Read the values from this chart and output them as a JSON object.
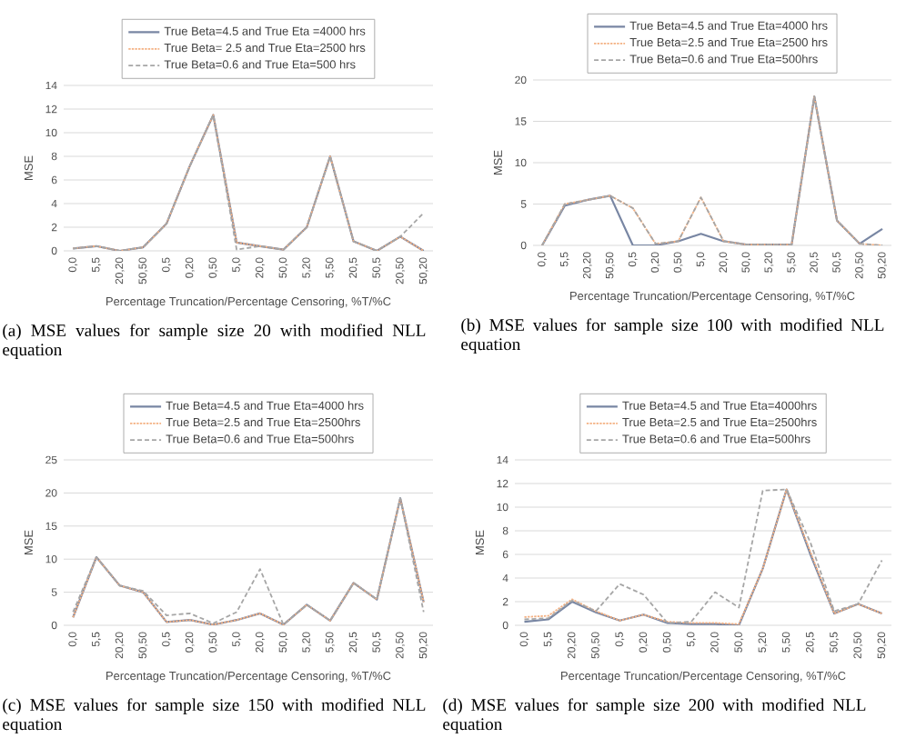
{
  "chart_data": [
    {
      "type": "line",
      "categories": [
        "0,0",
        "5,5",
        "20,20",
        "50,50",
        "0,5",
        "0,20",
        "0,50",
        "5,0",
        "20,0",
        "50,0",
        "5,20",
        "5,50",
        "20,5",
        "50,5",
        "20,50",
        "50,20"
      ],
      "xlabel": "Percentage Truncation/Percentage Censoring, %T/%C",
      "ylabel": "MSE",
      "ylim": [
        0,
        14
      ],
      "yticks": [
        0,
        2,
        4,
        6,
        8,
        10,
        12,
        14
      ],
      "grid": "y",
      "legend": "top",
      "annotations": [
        "(a) MSE values for sample size 20 with modified NLL equation"
      ],
      "series": [
        {
          "name": "True Beta=4.5 and True Eta =4000 hrs",
          "color": "#7886a3",
          "line_style": "solid",
          "values": [
            0.2,
            0.4,
            0,
            0.3,
            2.3,
            7.2,
            11.5,
            0.7,
            0.4,
            0.1,
            2,
            8,
            0.8,
            0,
            1.2,
            0
          ]
        },
        {
          "name": "True Beta= 2.5 and True Eta=2500 hrs",
          "color": "#f4b183",
          "line_style": "dotted",
          "values": [
            0.2,
            0.4,
            0,
            0.3,
            2.3,
            7.2,
            11.5,
            0.7,
            0.4,
            0.1,
            2,
            8,
            0.8,
            0,
            1.2,
            0
          ]
        },
        {
          "name": "True Beta=0.6 and True Eta=500 hrs",
          "color": "#a6a6a6",
          "line_style": "dashed",
          "values": [
            0.2,
            0.4,
            0,
            0.3,
            2.3,
            7.2,
            11.5,
            0.1,
            0.4,
            0.1,
            2,
            8,
            0.8,
            0,
            1.2,
            3.2
          ]
        }
      ]
    },
    {
      "type": "line",
      "categories": [
        "0,0",
        "5,5",
        "20,20",
        "50,50",
        "0,5",
        "0,20",
        "0,50",
        "5,0",
        "20,0",
        "50,0",
        "5,20",
        "5,50",
        "20,5",
        "50,5",
        "20,50",
        "50,20"
      ],
      "xlabel": "Percentage Truncation/Percentage Censoring, %T/%C",
      "ylabel": "MSE",
      "ylim": [
        0,
        20
      ],
      "yticks": [
        0,
        5,
        10,
        15,
        20
      ],
      "grid": "y",
      "legend": "top",
      "annotations": [
        "(b) MSE values for sample size 100 with modified NLL equation"
      ],
      "series": [
        {
          "name": "True Beta=4.5 and True Eta=4000 hrs",
          "color": "#7886a3",
          "line_style": "solid",
          "values": [
            0,
            4.8,
            5.5,
            6,
            0,
            0,
            0.5,
            1.4,
            0.5,
            0.1,
            0.1,
            0.1,
            18,
            3,
            0.2,
            2
          ]
        },
        {
          "name": "True Beta=2.5 and True Eta=2500 hrs",
          "color": "#f4b183",
          "line_style": "dotted",
          "values": [
            0,
            5,
            5.5,
            6,
            4.5,
            0.2,
            0.5,
            5.8,
            0.5,
            0.1,
            0.1,
            0.1,
            18,
            3,
            0.2,
            0
          ]
        },
        {
          "name": "True Beta=0.6 and True Eta=500hrs",
          "color": "#a6a6a6",
          "line_style": "dashed",
          "values": [
            0,
            5,
            5.5,
            6,
            4.5,
            0.2,
            0.5,
            5.8,
            0.5,
            0.1,
            0.1,
            0.1,
            18,
            3,
            0.2,
            0
          ]
        }
      ]
    },
    {
      "type": "line",
      "categories": [
        "0,0",
        "5,5",
        "20,20",
        "50,50",
        "0,5",
        "0,20",
        "0,50",
        "5,0",
        "20,0",
        "50,0",
        "5,20",
        "5,50",
        "20,5",
        "50,5",
        "20,50",
        "50,20"
      ],
      "xlabel": "Percentage Truncation/Percentage Censoring, %T/%C",
      "ylabel": "MSE",
      "ylim": [
        0,
        25
      ],
      "yticks": [
        0,
        5,
        10,
        15,
        20,
        25
      ],
      "grid": "y",
      "legend": "top",
      "annotations": [
        "(c) MSE values for sample size 150 with modified NLL equation"
      ],
      "series": [
        {
          "name": "True Beta=4.5 and True Eta=4000 hrs",
          "color": "#7886a3",
          "line_style": "solid",
          "values": [
            1.2,
            10.3,
            6,
            5,
            0.5,
            0.8,
            0.1,
            0.8,
            1.8,
            0.1,
            3.1,
            0.7,
            6.4,
            3.9,
            19.2,
            3.5
          ]
        },
        {
          "name": "True Beta=2.5 and True Eta=2500hrs",
          "color": "#f4b183",
          "line_style": "dotted",
          "values": [
            1.2,
            10.3,
            6,
            5,
            0.5,
            0.8,
            0.1,
            0.8,
            1.8,
            0.1,
            3.1,
            0.7,
            6.4,
            3.9,
            19.2,
            3.5
          ]
        },
        {
          "name": "True Beta=0.6 and True Eta=500hrs",
          "color": "#a6a6a6",
          "line_style": "dashed",
          "values": [
            2,
            10.3,
            6,
            5.2,
            1.5,
            1.8,
            0.3,
            2,
            8.5,
            0.1,
            3.1,
            0.7,
            6.4,
            3.9,
            19.2,
            2
          ]
        }
      ]
    },
    {
      "type": "line",
      "categories": [
        "0,0",
        "5,5",
        "20,20",
        "50,50",
        "0,5",
        "0,20",
        "0,50",
        "5,0",
        "20,0",
        "50,0",
        "5,20",
        "5,50",
        "20,5",
        "50,5",
        "20,50",
        "50,20"
      ],
      "xlabel": "Percentage Truncation/Percentage Censoring, %T/%C",
      "ylabel": "MSE",
      "ylim": [
        0,
        14
      ],
      "yticks": [
        0,
        2,
        4,
        6,
        8,
        10,
        12,
        14
      ],
      "grid": "y",
      "legend": "top",
      "annotations": [
        "(d) MSE values for sample size 200 with modified NLL equation"
      ],
      "series": [
        {
          "name": "True Beta=4.5 and True Eta=4000hrs",
          "color": "#7886a3",
          "line_style": "solid",
          "values": [
            0.3,
            0.5,
            2,
            1.1,
            0.4,
            0.9,
            0.2,
            0.1,
            0.1,
            0,
            4.8,
            11.5,
            6,
            1,
            1.8,
            1
          ]
        },
        {
          "name": "True Beta=2.5 and True Eta=2500hrs",
          "color": "#f4b183",
          "line_style": "dotted",
          "values": [
            0.7,
            0.8,
            2.2,
            1.2,
            0.4,
            0.9,
            0.3,
            0.2,
            0.2,
            0.1,
            4.8,
            11.5,
            6.2,
            1,
            1.8,
            1
          ]
        },
        {
          "name": "True Beta=0.6 and True Eta=500hrs",
          "color": "#a6a6a6",
          "line_style": "dashed",
          "values": [
            0.5,
            0.6,
            2.1,
            1.2,
            3.5,
            2.6,
            0.2,
            0.3,
            2.8,
            1.5,
            11.4,
            11.5,
            7,
            1.2,
            1.8,
            5.5
          ]
        }
      ]
    }
  ]
}
